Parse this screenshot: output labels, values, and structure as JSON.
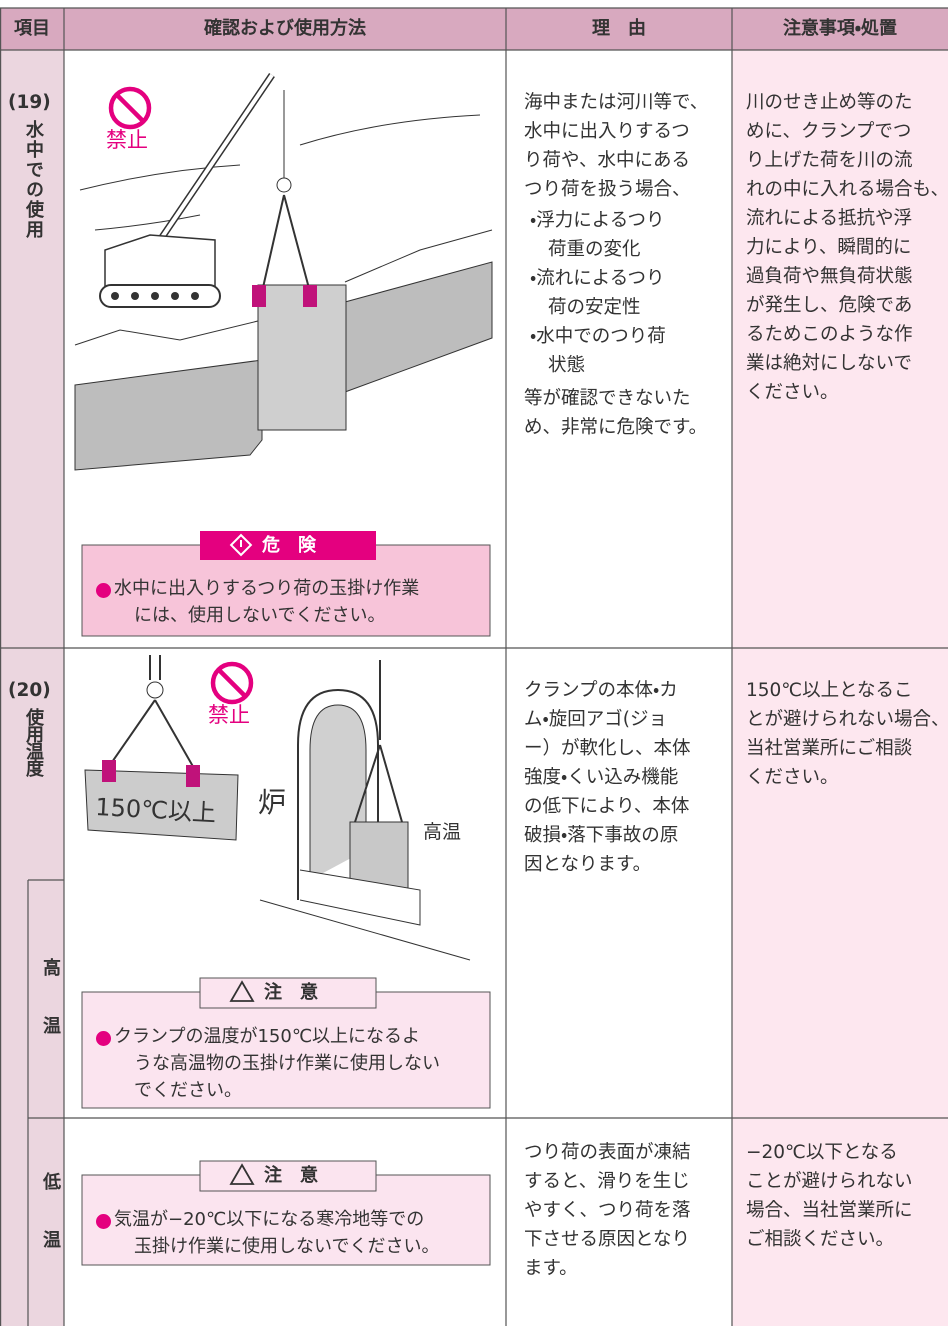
{
  "header": {
    "columns": [
      "項目",
      "確認および使用方法",
      "理　由",
      "注意事項・処置"
    ]
  },
  "rows": [
    {
      "item_number": "(19)",
      "item_label": "水中での使用",
      "illustration": {
        "prohibition": "禁止"
      },
      "warning": {
        "label": "危　険",
        "lines": [
          "水中に出入りするつり荷の玉掛け作業",
          "には、使用しないでください。"
        ]
      },
      "reason": {
        "intro": [
          "海中または河川等で、",
          "水中に出入りするつ",
          "り荷や、水中にある",
          "つり荷を扱う場合、"
        ],
        "bullets": [
          [
            "・浮力によるつり",
            "荷重の変化"
          ],
          [
            "・流れによるつり",
            "荷の安定性"
          ],
          [
            "・水中でのつり荷",
            "状態"
          ]
        ],
        "outro": [
          "等が確認できないた",
          "め、非常に危険です。"
        ]
      },
      "action": [
        "川のせき止め等のた",
        "めに、クランプでつ",
        "り上げた荷を川の流",
        "れの中に入れる場合も、",
        "流れによる抵抗や浮",
        "力により、瞬間的に",
        "過負荷や無負荷状態",
        "が発生し、危険であ",
        "るためこのような作",
        "業は絶対にしないで",
        "ください。"
      ]
    },
    {
      "item_number": "(20)",
      "item_label": "使用温度",
      "subrows": [
        {
          "label": "高温",
          "illustration": {
            "prohibition": "禁止",
            "plate_text": "150℃以上",
            "furnace": "炉",
            "hot": "高温"
          },
          "warning": {
            "label": "注　意",
            "lines": [
              "クランプの温度が150℃以上になるよ",
              "うな高温物の玉掛け作業に使用しない",
              "でください。"
            ]
          },
          "reason": [
            "クランプの本体・カ",
            "ム・旋回アゴ(ジョ",
            "ー）が軟化し、本体",
            "強度・くい込み機能",
            "の低下により、本体",
            "破損・落下事故の原",
            "因となります。"
          ],
          "action": [
            "150℃以上となるこ",
            "とが避けられない場合、",
            "当社営業所にご相談",
            "ください。"
          ]
        },
        {
          "label": "低温",
          "warning": {
            "label": "注　意",
            "lines": [
              "気温が−20℃以下になる寒冷地等での",
              "玉掛け作業に使用しないでください。"
            ]
          },
          "reason": [
            "つり荷の表面が凍結",
            "すると、滑りを生じ",
            "やすく、つり荷を落",
            "下させる原因となり",
            "ます。"
          ],
          "action": [
            "−20℃以下となる",
            "ことが避けられない",
            "場合、当社営業所に",
            "ご相談ください。"
          ]
        }
      ]
    }
  ]
}
